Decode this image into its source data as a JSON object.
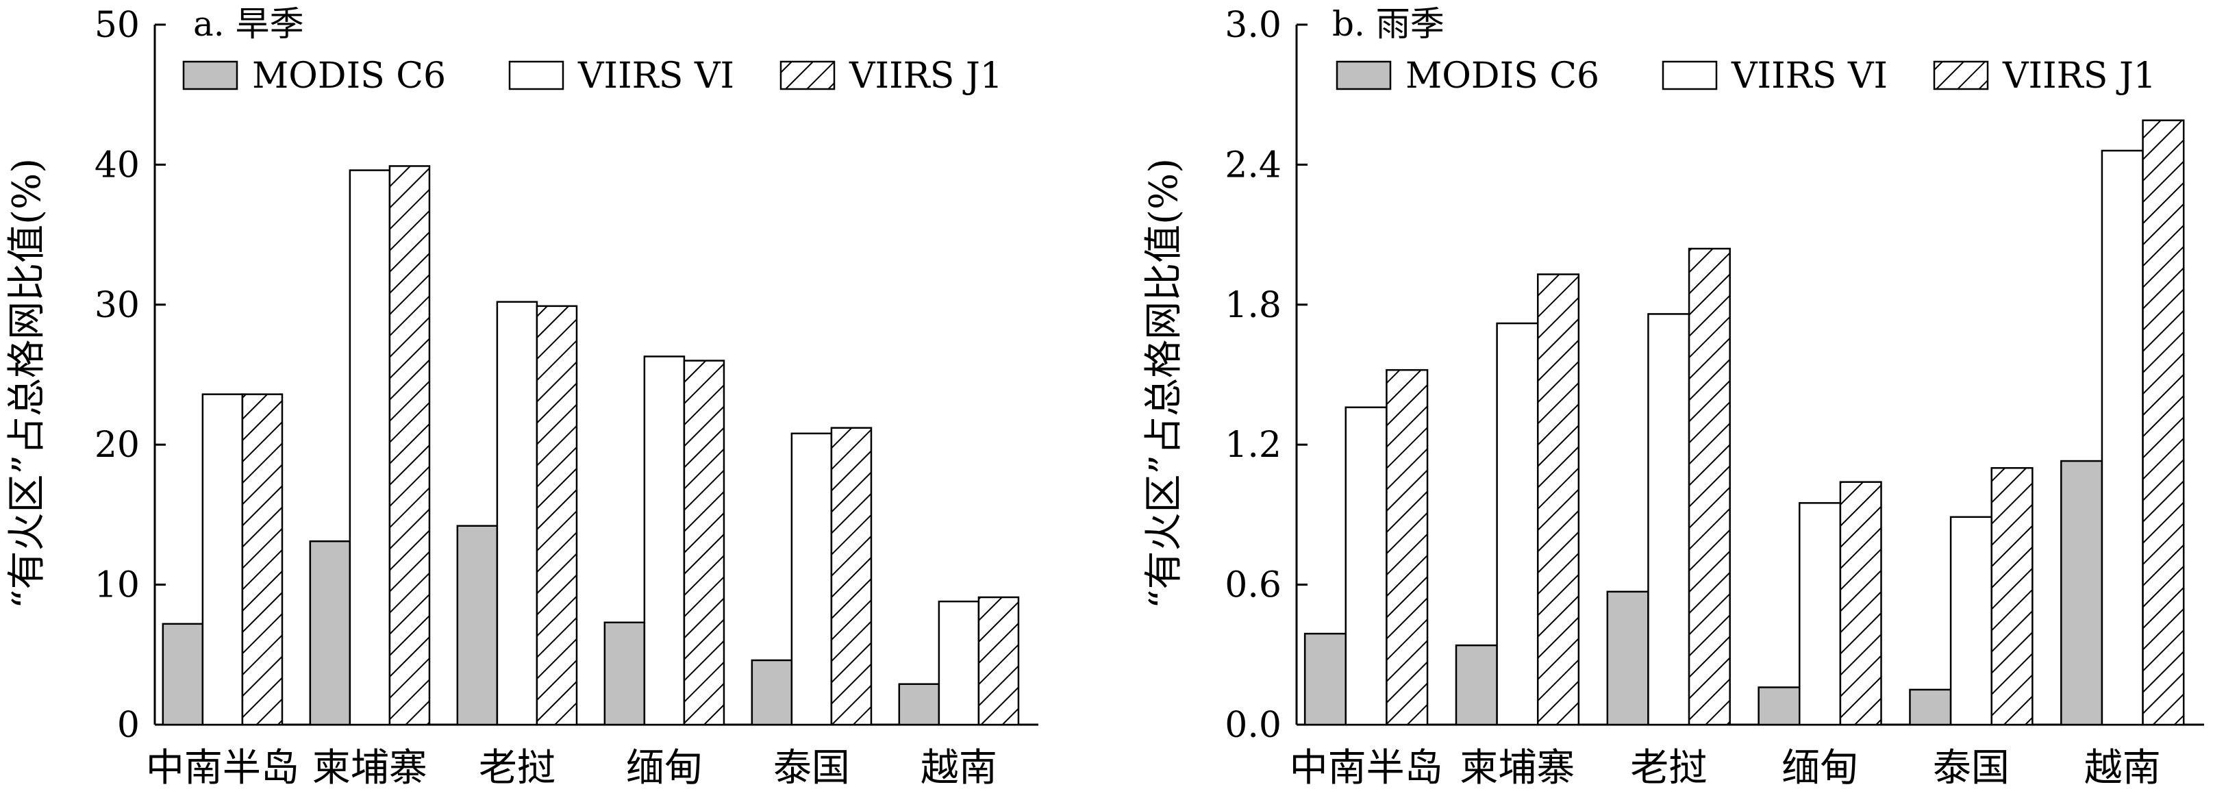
{
  "chart_data": [
    {
      "type": "bar",
      "title": "a. 旱季",
      "xlabel": "",
      "ylabel": "“有火区”占总格网比值(%)",
      "ylim": [
        0,
        50
      ],
      "yticks": [
        "0",
        "10",
        "20",
        "30",
        "40",
        "50"
      ],
      "categories": [
        "中南半岛",
        "柬埔寨",
        "老挝",
        "缅甸",
        "泰国",
        "越南"
      ],
      "legend_position": "top",
      "grid": false,
      "series": [
        {
          "name": "MODIS C6",
          "values": [
            7.2,
            13.1,
            14.2,
            7.3,
            4.6,
            2.9
          ],
          "fill": "#c0c0c0"
        },
        {
          "name": "VIIRS VI",
          "values": [
            23.6,
            39.6,
            30.2,
            26.3,
            20.8,
            8.8
          ],
          "fill": "#ffffff"
        },
        {
          "name": "VIIRS J1",
          "values": [
            23.6,
            39.9,
            29.9,
            26.0,
            21.2,
            9.1
          ],
          "fill": "hatch"
        }
      ]
    },
    {
      "type": "bar",
      "title": "b. 雨季",
      "xlabel": "",
      "ylabel": "“有火区”占总格网比值(%)",
      "ylim": [
        0,
        3.0
      ],
      "yticks": [
        "0.0",
        "0.6",
        "1.2",
        "1.8",
        "2.4",
        "3.0"
      ],
      "categories": [
        "中南半岛",
        "柬埔寨",
        "老挝",
        "缅甸",
        "泰国",
        "越南"
      ],
      "legend_position": "top",
      "grid": false,
      "series": [
        {
          "name": "MODIS C6",
          "values": [
            0.39,
            0.34,
            0.57,
            0.16,
            0.15,
            1.13
          ],
          "fill": "#c0c0c0"
        },
        {
          "name": "VIIRS VI",
          "values": [
            1.36,
            1.72,
            1.76,
            0.95,
            0.89,
            2.46
          ],
          "fill": "#ffffff"
        },
        {
          "name": "VIIRS J1",
          "values": [
            1.52,
            1.93,
            2.04,
            1.04,
            1.1,
            2.59
          ],
          "fill": "hatch"
        }
      ]
    }
  ]
}
